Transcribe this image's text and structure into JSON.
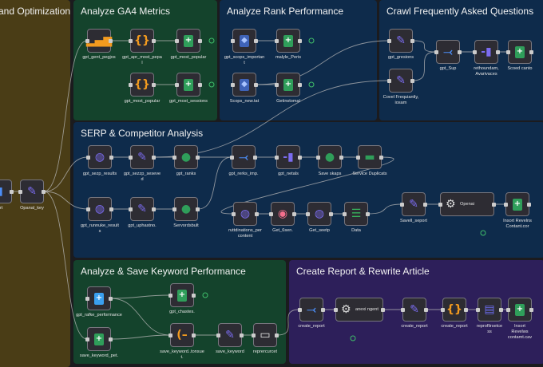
{
  "groups": [
    {
      "title": "and Optimization",
      "color": "#4a3d16"
    },
    {
      "title": "Analyze GA4 Metrics",
      "color": "#14432c"
    },
    {
      "title": "Analyze Rank Performance",
      "color": "#0e2b4b"
    },
    {
      "title": "Crawl Frequently Asked Questions",
      "color": "#0e2b4b"
    },
    {
      "title": "SERP & Competitor Analysis",
      "color": "#0e2b4b"
    },
    {
      "title": "Analyze & Save Keyword Performance",
      "color": "#14432c"
    },
    {
      "title": "Create Report & Rewrite Article",
      "color": "#2d1f5a"
    }
  ],
  "nodes": [
    {
      "label": "ort",
      "icon": "mic-icon"
    },
    {
      "label": "Opanal_key",
      "icon": "pencil-icon"
    },
    {
      "label": "gpt_gent_pegjos",
      "icon": "bar-chart-icon"
    },
    {
      "label": "gpt_apr_most_pepal",
      "icon": "braces-icon"
    },
    {
      "label": "gpt_most_popular",
      "icon": "sheets-icon"
    },
    {
      "label": "gpt_most_popular",
      "icon": "braces-icon"
    },
    {
      "label": "gpt_most_sessions",
      "icon": "sheets-icon"
    },
    {
      "label": "gpt_scops_important",
      "icon": "shield-icon"
    },
    {
      "label": "malyle_Peris",
      "icon": "sheets-icon"
    },
    {
      "label": "Scops_new.tat",
      "icon": "shield-icon"
    },
    {
      "label": "Getinstomal",
      "icon": "sheets-icon"
    },
    {
      "label": "gpt_gresions",
      "icon": "pencil-icon"
    },
    {
      "label": "Covel Frequiantly, iosam",
      "icon": "pencil-icon"
    },
    {
      "label": "gpt_Sup",
      "icon": "merge-icon"
    },
    {
      "label": "rethoundam, Avarivaces",
      "icon": "split-icon"
    },
    {
      "label": "Scoed canto",
      "icon": "sheets-icon"
    },
    {
      "label": "gpt_sezp_results",
      "icon": "globe-icon"
    },
    {
      "label": "gpt_sezzp_seseved",
      "icon": "pencil-icon"
    },
    {
      "label": "gpt_ranks",
      "icon": "person-icon"
    },
    {
      "label": "gpt_rerks_imp.",
      "icon": "merge-icon"
    },
    {
      "label": "gpt_netals",
      "icon": "split-icon"
    },
    {
      "label": "Save skaps",
      "icon": "person-icon"
    },
    {
      "label": "Service Duplicats",
      "icon": "database-icon"
    },
    {
      "label": "gpt_runnuke_results",
      "icon": "globe-icon"
    },
    {
      "label": "gpt_uphastno.",
      "icon": "pencil-icon"
    },
    {
      "label": "Servordsbult",
      "icon": "person-icon"
    },
    {
      "label": "ruttdinations_per content",
      "icon": "globe-icon"
    },
    {
      "label": "Get_6sen.",
      "icon": "donut-icon"
    },
    {
      "label": "Get_seetp",
      "icon": "globe-icon"
    },
    {
      "label": "Data",
      "icon": "filter-icon"
    },
    {
      "label": "Savell_seport",
      "icon": "pencil-icon"
    },
    {
      "label": "Openai",
      "icon": "openai-icon"
    },
    {
      "label": "Insort Revelns Contant.cor",
      "icon": "sheets-icon"
    },
    {
      "label": "gpt_rafke_performance",
      "icon": "plus-circle-icon"
    },
    {
      "label": "gpt_chastes.",
      "icon": "sheets-icon"
    },
    {
      "label": "save_keyword_pet.",
      "icon": "sheets-icon"
    },
    {
      "label": "save_keyword..tonsuet.",
      "icon": "code-icon"
    },
    {
      "label": "save_keyword",
      "icon": "pencil-icon"
    },
    {
      "label": "reprercurcet",
      "icon": "badge-icon"
    },
    {
      "label": "create_report",
      "icon": "merge-icon"
    },
    {
      "label": "anexi ngent",
      "icon": "openai-icon"
    },
    {
      "label": "create_report",
      "icon": "pencil-icon"
    },
    {
      "label": "create_report",
      "icon": "braces-icon"
    },
    {
      "label": "reproflirsetcess",
      "icon": "doc-icon"
    },
    {
      "label": "Insort Revelws contamt.cav",
      "icon": "sheets-icon"
    }
  ],
  "colors": {
    "node_bg": "#2d2c33",
    "wire": "#b8b8b8",
    "success": "#3fbf6a"
  }
}
